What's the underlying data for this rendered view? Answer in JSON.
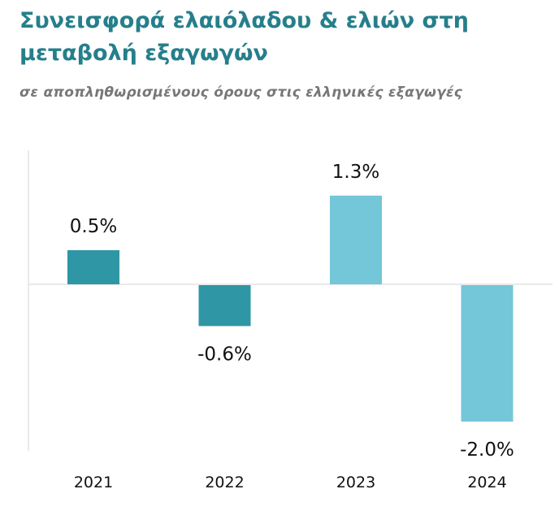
{
  "chart_data": {
    "type": "bar",
    "title": "Συνεισφορά ελαιόλαδου & ελιών στη μεταβολή εξαγωγών",
    "subtitle": "σε αποπληθωρισμένους όρους στις ελληνικές εξαγωγές",
    "categories": [
      "2021",
      "2022",
      "2023",
      "2024"
    ],
    "values": [
      0.5,
      -0.6,
      1.3,
      -2.0
    ],
    "data_labels": [
      "0.5%",
      "-0.6%",
      "1.3%",
      "-2.0%"
    ],
    "colors": [
      "#2e96a4",
      "#2e96a4",
      "#74c6d9",
      "#74c6d9"
    ],
    "xlabel": "",
    "ylabel": "",
    "ylim": [
      -2.4,
      2.0
    ],
    "grid": false,
    "legend": "none"
  }
}
